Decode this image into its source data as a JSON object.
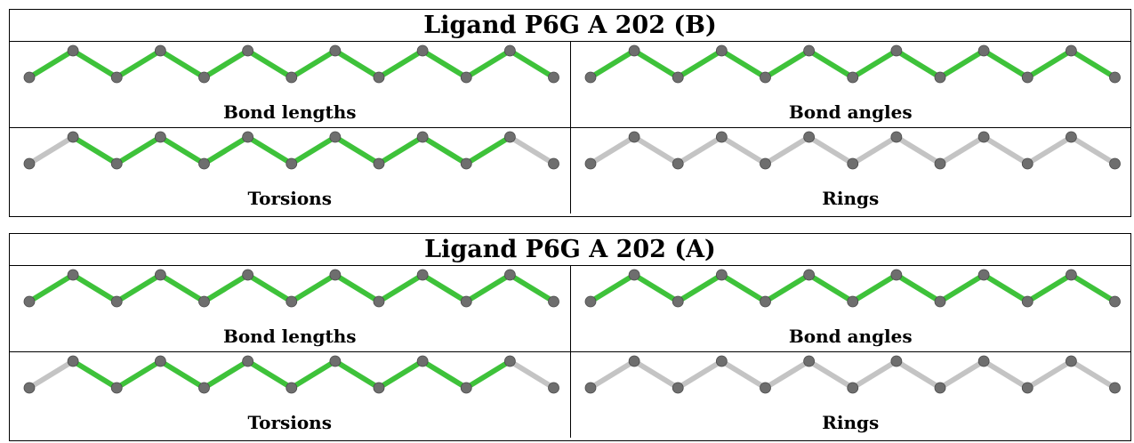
{
  "colors": {
    "highlight": "#3ec23a",
    "plain": "#c4c4c4",
    "atom": "#6e6e6e"
  },
  "panels": [
    {
      "title": "Ligand P6G A 202 (B)",
      "cells": [
        {
          "label": "Bond lengths",
          "bonds": [
            "highlight",
            "highlight",
            "highlight",
            "highlight",
            "highlight",
            "highlight",
            "highlight",
            "highlight",
            "highlight",
            "highlight",
            "highlight",
            "highlight"
          ]
        },
        {
          "label": "Bond angles",
          "bonds": [
            "highlight",
            "highlight",
            "highlight",
            "highlight",
            "highlight",
            "highlight",
            "highlight",
            "highlight",
            "highlight",
            "highlight",
            "highlight",
            "highlight"
          ]
        },
        {
          "label": "Torsions",
          "bonds": [
            "plain",
            "highlight",
            "highlight",
            "highlight",
            "highlight",
            "highlight",
            "highlight",
            "highlight",
            "highlight",
            "highlight",
            "highlight",
            "plain"
          ]
        },
        {
          "label": "Rings",
          "bonds": [
            "plain",
            "plain",
            "plain",
            "plain",
            "plain",
            "plain",
            "plain",
            "plain",
            "plain",
            "plain",
            "plain",
            "plain"
          ]
        }
      ]
    },
    {
      "title": "Ligand P6G A 202 (A)",
      "cells": [
        {
          "label": "Bond lengths",
          "bonds": [
            "highlight",
            "highlight",
            "highlight",
            "highlight",
            "highlight",
            "highlight",
            "highlight",
            "highlight",
            "highlight",
            "highlight",
            "highlight",
            "highlight"
          ]
        },
        {
          "label": "Bond angles",
          "bonds": [
            "highlight",
            "highlight",
            "highlight",
            "highlight",
            "highlight",
            "highlight",
            "highlight",
            "highlight",
            "highlight",
            "highlight",
            "highlight",
            "highlight"
          ]
        },
        {
          "label": "Torsions",
          "bonds": [
            "plain",
            "highlight",
            "highlight",
            "highlight",
            "highlight",
            "highlight",
            "highlight",
            "highlight",
            "highlight",
            "highlight",
            "highlight",
            "plain"
          ]
        },
        {
          "label": "Rings",
          "bonds": [
            "plain",
            "plain",
            "plain",
            "plain",
            "plain",
            "plain",
            "plain",
            "plain",
            "plain",
            "plain",
            "plain",
            "plain"
          ]
        }
      ]
    }
  ]
}
